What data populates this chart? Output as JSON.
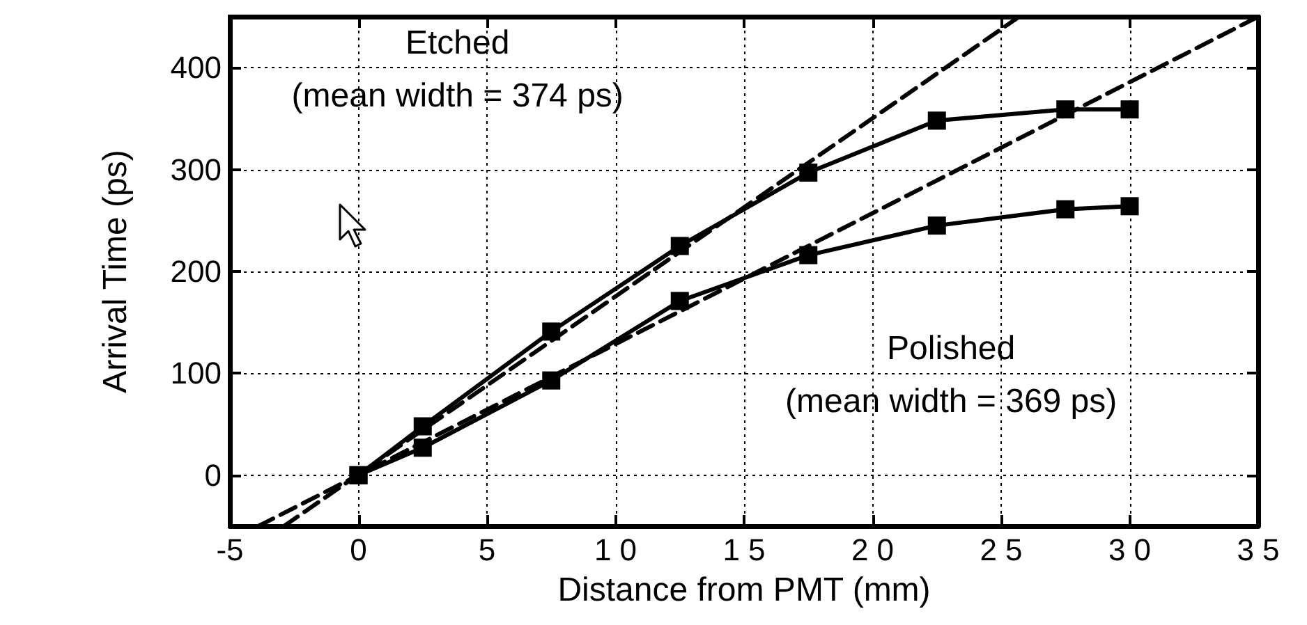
{
  "chart_data": {
    "type": "line",
    "xlabel": "Distance from PMT (mm)",
    "ylabel": "Arrival Time (ps)",
    "xlim": [
      -5,
      35
    ],
    "xticks": [
      -5,
      0,
      5,
      {
        "value": 10,
        "label": "1 0"
      },
      {
        "value": 15,
        "label": "1 5"
      },
      {
        "value": 20,
        "label": "2 0"
      },
      {
        "value": 25,
        "label": "2 5"
      },
      {
        "value": 30,
        "label": "3 0"
      },
      {
        "value": 35,
        "label": "3 5"
      }
    ],
    "ylim": [
      -50,
      450
    ],
    "yticks": [
      0,
      100,
      200,
      300,
      400
    ],
    "grid": true,
    "series": [
      {
        "color": "#000000",
        "marker": "square",
        "line_style": "solid",
        "x": [
          0,
          2.5,
          7.5,
          12.5,
          17.5,
          22.5,
          27.5,
          30
        ],
        "values": [
          0,
          48,
          141,
          225,
          297,
          348,
          359,
          359
        ]
      },
      {
        "color": "#000000",
        "marker": "square",
        "line_style": "solid",
        "x": [
          0,
          2.5,
          7.5,
          12.5,
          17.5,
          22.5,
          27.5,
          30
        ],
        "values": [
          0,
          27,
          93,
          171,
          216,
          245,
          261,
          264
        ]
      },
      {
        "color": "#000000",
        "marker": "none",
        "line_style": "dashed",
        "x": [
          -2.9,
          25.7
        ],
        "values": [
          -50,
          450
        ]
      },
      {
        "color": "#000000",
        "marker": "none",
        "line_style": "dashed",
        "x": [
          -3.9,
          35
        ],
        "values": [
          -50,
          450
        ]
      }
    ],
    "annotations": [
      "Etched\n(mean width = 374 ps)",
      "Polished\n(mean width = 369 ps)"
    ]
  }
}
